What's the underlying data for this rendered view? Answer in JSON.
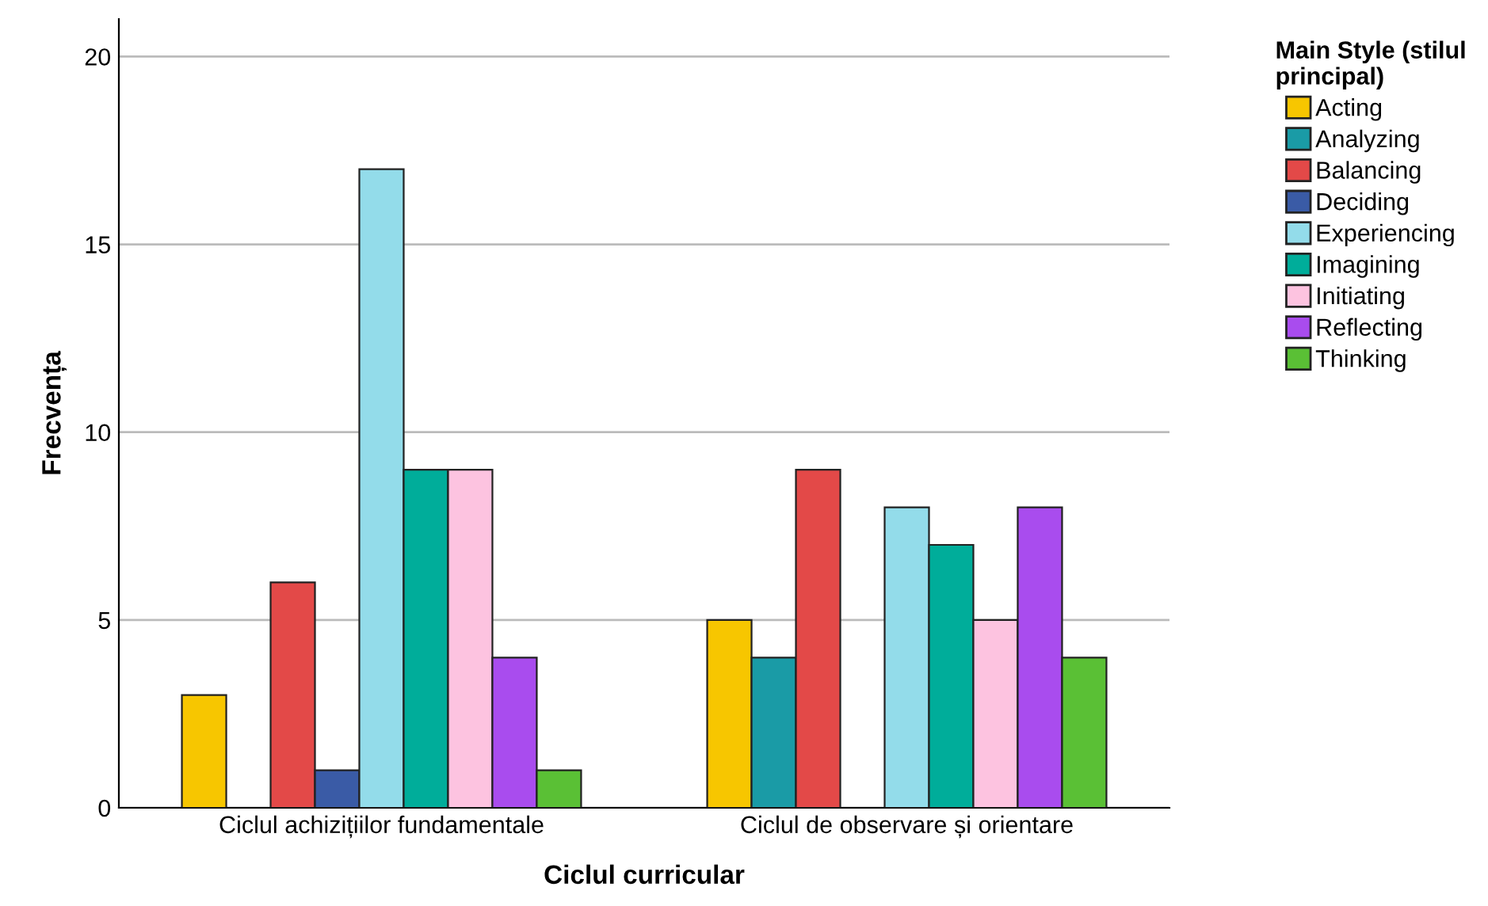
{
  "chart_data": {
    "type": "bar",
    "xlabel": "Ciclul curricular",
    "ylabel": "Frecvența",
    "legend_title": "Main Style (stilul\nprincipal)",
    "categories": [
      "Ciclul achizițiilor fundamentale",
      "Ciclul de observare și orientare"
    ],
    "series": [
      {
        "name": "Acting",
        "color": "#f7c600",
        "values": [
          3,
          5
        ]
      },
      {
        "name": "Analyzing",
        "color": "#1a9ba6",
        "values": [
          null,
          4
        ]
      },
      {
        "name": "Balancing",
        "color": "#e34948",
        "values": [
          6,
          9
        ]
      },
      {
        "name": "Deciding",
        "color": "#3a5ba6",
        "values": [
          1,
          null
        ]
      },
      {
        "name": "Experiencing",
        "color": "#93dcea",
        "values": [
          17,
          8
        ]
      },
      {
        "name": "Imagining",
        "color": "#00ad9a",
        "values": [
          9,
          7
        ]
      },
      {
        "name": "Initiating",
        "color": "#fdc3e0",
        "values": [
          9,
          5
        ]
      },
      {
        "name": "Reflecting",
        "color": "#a94cee",
        "values": [
          4,
          8
        ]
      },
      {
        "name": "Thinking",
        "color": "#5ac035",
        "values": [
          1,
          4
        ]
      }
    ],
    "ylim": [
      0,
      21
    ],
    "yticks": [
      0,
      5,
      10,
      15,
      20
    ],
    "grid": "y",
    "legend": "right"
  }
}
